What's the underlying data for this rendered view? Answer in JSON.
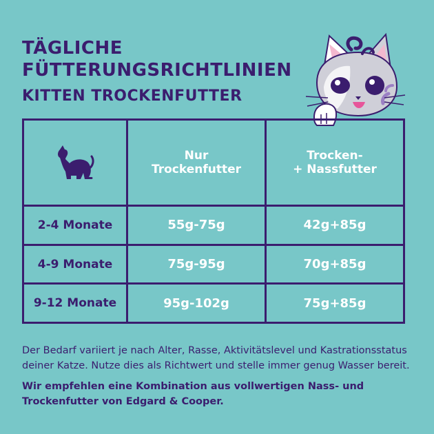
{
  "title": {
    "line1": "TÄGLICHE",
    "line2": "FÜTTERUNGSRICHTLINIEN"
  },
  "subtitle": "KITTEN TROCKENFUTTER",
  "table": {
    "headers": {
      "col1_icon": "cat-silhouette-icon",
      "col2_line1": "Nur",
      "col2_line2": "Trockenfutter",
      "col3_line1": "Trocken-",
      "col3_line2": "+ Nassfutter"
    },
    "rows": [
      {
        "age": "2-4 Monate",
        "dry": "55g-75g",
        "mixed": "42g+85g"
      },
      {
        "age": "4-9 Monate",
        "dry": "75g-95g",
        "mixed": "70g+85g"
      },
      {
        "age": "9-12 Monate",
        "dry": "95g-102g",
        "mixed": "75g+85g"
      }
    ]
  },
  "note": "Der Bedarf variiert je nach Alter, Rasse, Aktivitätslevel und Kastrationsstatus deiner Katze. Nutze dies als Richtwert und stelle immer genug Wasser bereit.",
  "recommendation": "Wir empfehlen eine Kombination aus vollwertigen Nass- und Trockenfutter von Edgard & Cooper.",
  "colors": {
    "background": "#78c7c8",
    "primary": "#3b1d6e",
    "text_light": "#ffffff"
  },
  "illustration": "kitten-peeking-icon"
}
